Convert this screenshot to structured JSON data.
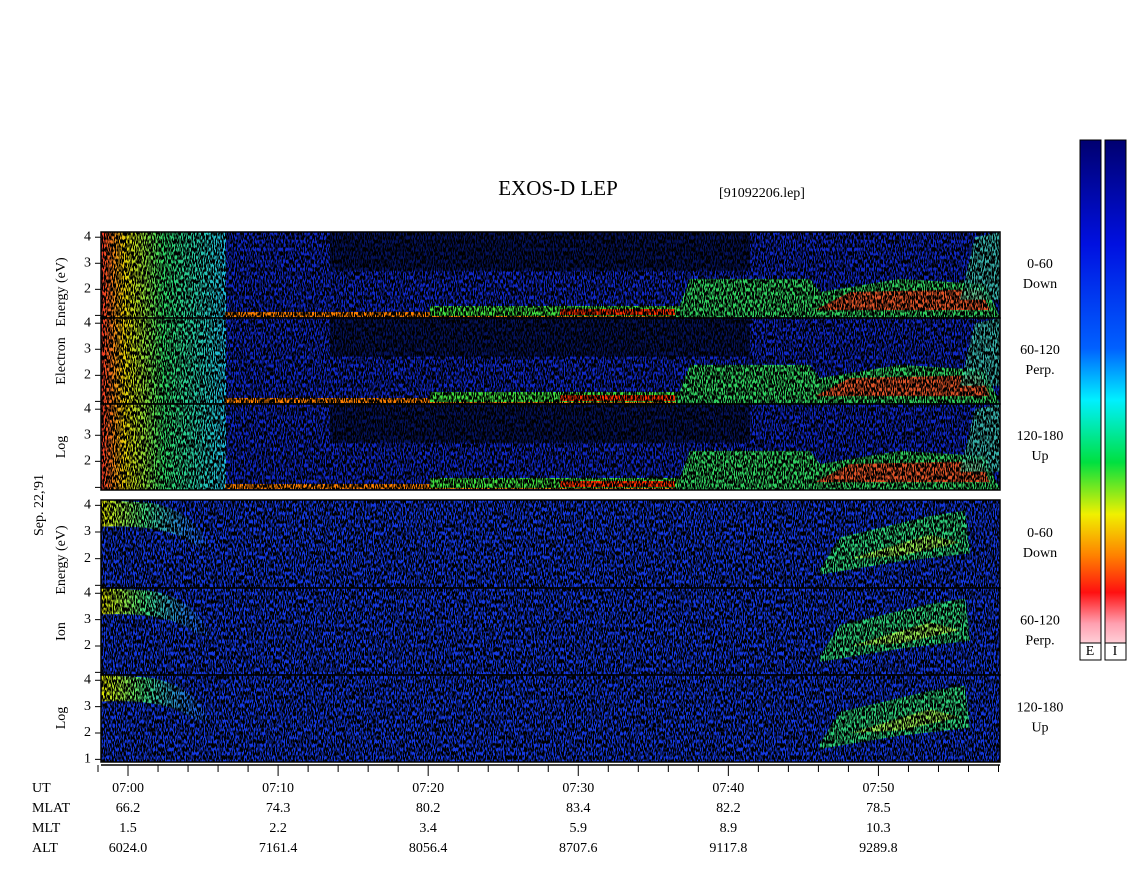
{
  "chart_data": {
    "type": "spectrogram",
    "title": "EXOS-D LEP",
    "subtitle": "[91092206.lep]",
    "date_label": "Sep. 22,'91",
    "groups": [
      {
        "ylabel": [
          "Log",
          "Electron",
          "Energy (eV)"
        ],
        "panels": [
          {
            "angle": "0-60",
            "direction": "Down",
            "yticks": [
              2,
              3,
              4
            ],
            "yminorticks": [
              1
            ]
          },
          {
            "angle": "60-120",
            "direction": "Perp.",
            "yticks": [
              2,
              3,
              4
            ],
            "yminorticks": [
              1
            ]
          },
          {
            "angle": "120-180",
            "direction": "Up",
            "yticks": [
              2,
              3,
              4
            ],
            "yminorticks": [
              1
            ]
          }
        ]
      },
      {
        "ylabel": [
          "Log",
          "Ion",
          "Energy (eV)"
        ],
        "panels": [
          {
            "angle": "0-60",
            "direction": "Down",
            "yticks": [
              2,
              3,
              4
            ],
            "yminorticks": [
              1
            ]
          },
          {
            "angle": "60-120",
            "direction": "Perp.",
            "yticks": [
              2,
              3,
              4
            ],
            "yminorticks": [
              1
            ]
          },
          {
            "angle": "120-180",
            "direction": "Up",
            "yticks": [
              1,
              2,
              3,
              4
            ],
            "yminorticks": []
          }
        ]
      }
    ],
    "ylim": [
      0.9,
      4.2
    ],
    "xlim": [
      418.2,
      478.1
    ],
    "xticks": [
      {
        "value": 420,
        "label": "07:00"
      },
      {
        "value": 430,
        "label": "07:10"
      },
      {
        "value": 440,
        "label": "07:20"
      },
      {
        "value": 450,
        "label": "07:30"
      },
      {
        "value": 460,
        "label": "07:40"
      },
      {
        "value": 470,
        "label": "07:50"
      }
    ],
    "xminor_step_ticks": [
      418,
      422,
      424,
      426,
      428,
      432,
      434,
      436,
      438,
      442,
      444,
      446,
      448,
      452,
      454,
      456,
      458,
      462,
      464,
      466,
      468,
      472,
      474,
      476,
      478
    ],
    "orbit_table": [
      {
        "label": "UT"
      },
      {
        "label": "MLAT",
        "values": [
          "66.2",
          "74.3",
          "80.2",
          "83.4",
          "82.2",
          "78.5"
        ]
      },
      {
        "label": "MLT",
        "values": [
          "1.5",
          "2.2",
          "3.4",
          "5.9",
          "8.9",
          "10.3"
        ]
      },
      {
        "label": "ALT",
        "values": [
          "6024.0",
          "7161.4",
          "8056.4",
          "8707.6",
          "9117.8",
          "9289.8"
        ]
      }
    ],
    "colorbar_labels": [
      "E",
      "I"
    ]
  }
}
